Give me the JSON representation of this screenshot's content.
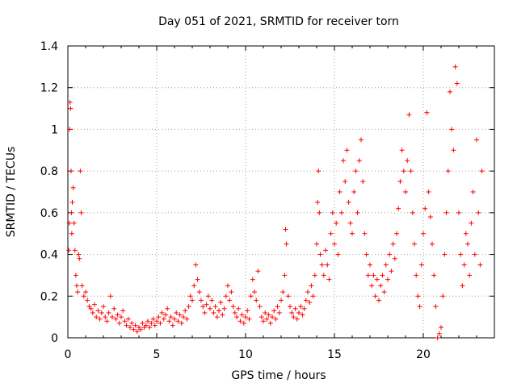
{
  "chart_data": {
    "type": "scatter",
    "title": "Day 051 of 2021, SRMTID for receiver torn",
    "xlabel": "GPS time / hours",
    "ylabel": "SRMTID / TECUs",
    "xlim": [
      0,
      24
    ],
    "ylim": [
      0,
      1.4
    ],
    "xticks": [
      0,
      5,
      10,
      15,
      20
    ],
    "xtick_labels": [
      "0",
      "5",
      "10",
      "15",
      "20"
    ],
    "yticks": [
      0,
      0.2,
      0.4,
      0.6,
      0.8,
      1.0,
      1.2,
      1.4
    ],
    "ytick_labels": [
      "0",
      "0.2",
      "0.4",
      "0.6",
      "0.8",
      "1",
      "1.2",
      "1.4"
    ],
    "grid": true,
    "marker": "+",
    "series": [
      {
        "name": "SRMTID",
        "color": "#ff0000",
        "points": [
          [
            0.05,
            0.42
          ],
          [
            0.08,
            0.55
          ],
          [
            0.1,
            1.0
          ],
          [
            0.12,
            1.13
          ],
          [
            0.15,
            1.1
          ],
          [
            0.18,
            0.8
          ],
          [
            0.2,
            0.6
          ],
          [
            0.22,
            0.5
          ],
          [
            0.25,
            0.65
          ],
          [
            0.3,
            0.72
          ],
          [
            0.35,
            0.55
          ],
          [
            0.4,
            0.42
          ],
          [
            0.45,
            0.3
          ],
          [
            0.5,
            0.25
          ],
          [
            0.55,
            0.22
          ],
          [
            0.6,
            0.4
          ],
          [
            0.65,
            0.38
          ],
          [
            0.7,
            0.8
          ],
          [
            0.75,
            0.6
          ],
          [
            0.8,
            0.25
          ],
          [
            0.9,
            0.2
          ],
          [
            1.0,
            0.22
          ],
          [
            1.1,
            0.18
          ],
          [
            1.2,
            0.15
          ],
          [
            1.3,
            0.14
          ],
          [
            1.4,
            0.12
          ],
          [
            1.5,
            0.16
          ],
          [
            1.6,
            0.1
          ],
          [
            1.7,
            0.13
          ],
          [
            1.8,
            0.09
          ],
          [
            1.9,
            0.12
          ],
          [
            2.0,
            0.15
          ],
          [
            2.1,
            0.1
          ],
          [
            2.2,
            0.08
          ],
          [
            2.3,
            0.12
          ],
          [
            2.4,
            0.2
          ],
          [
            2.5,
            0.1
          ],
          [
            2.6,
            0.14
          ],
          [
            2.7,
            0.09
          ],
          [
            2.8,
            0.11
          ],
          [
            2.9,
            0.07
          ],
          [
            3.0,
            0.1
          ],
          [
            3.1,
            0.13
          ],
          [
            3.2,
            0.08
          ],
          [
            3.3,
            0.06
          ],
          [
            3.4,
            0.09
          ],
          [
            3.5,
            0.05
          ],
          [
            3.6,
            0.07
          ],
          [
            3.7,
            0.04
          ],
          [
            3.8,
            0.06
          ],
          [
            3.9,
            0.03
          ],
          [
            4.0,
            0.05
          ],
          [
            4.1,
            0.04
          ],
          [
            4.2,
            0.07
          ],
          [
            4.3,
            0.05
          ],
          [
            4.4,
            0.06
          ],
          [
            4.5,
            0.08
          ],
          [
            4.6,
            0.05
          ],
          [
            4.7,
            0.07
          ],
          [
            4.8,
            0.09
          ],
          [
            4.9,
            0.06
          ],
          [
            5.0,
            0.08
          ],
          [
            5.1,
            0.1
          ],
          [
            5.2,
            0.07
          ],
          [
            5.3,
            0.12
          ],
          [
            5.4,
            0.09
          ],
          [
            5.5,
            0.11
          ],
          [
            5.6,
            0.14
          ],
          [
            5.7,
            0.08
          ],
          [
            5.8,
            0.1
          ],
          [
            5.9,
            0.06
          ],
          [
            6.0,
            0.09
          ],
          [
            6.1,
            0.12
          ],
          [
            6.2,
            0.08
          ],
          [
            6.3,
            0.11
          ],
          [
            6.4,
            0.07
          ],
          [
            6.5,
            0.1
          ],
          [
            6.6,
            0.13
          ],
          [
            6.7,
            0.09
          ],
          [
            6.8,
            0.15
          ],
          [
            6.9,
            0.2
          ],
          [
            7.0,
            0.18
          ],
          [
            7.1,
            0.25
          ],
          [
            7.2,
            0.35
          ],
          [
            7.3,
            0.28
          ],
          [
            7.4,
            0.22
          ],
          [
            7.5,
            0.18
          ],
          [
            7.6,
            0.15
          ],
          [
            7.7,
            0.12
          ],
          [
            7.8,
            0.16
          ],
          [
            7.9,
            0.2
          ],
          [
            8.0,
            0.14
          ],
          [
            8.1,
            0.18
          ],
          [
            8.2,
            0.12
          ],
          [
            8.3,
            0.15
          ],
          [
            8.4,
            0.1
          ],
          [
            8.5,
            0.13
          ],
          [
            8.6,
            0.17
          ],
          [
            8.7,
            0.11
          ],
          [
            8.8,
            0.14
          ],
          [
            8.9,
            0.2
          ],
          [
            9.0,
            0.25
          ],
          [
            9.1,
            0.18
          ],
          [
            9.2,
            0.22
          ],
          [
            9.3,
            0.15
          ],
          [
            9.4,
            0.12
          ],
          [
            9.5,
            0.1
          ],
          [
            9.6,
            0.14
          ],
          [
            9.7,
            0.08
          ],
          [
            9.8,
            0.11
          ],
          [
            9.9,
            0.07
          ],
          [
            10.0,
            0.1
          ],
          [
            10.1,
            0.13
          ],
          [
            10.2,
            0.09
          ],
          [
            10.3,
            0.2
          ],
          [
            10.4,
            0.28
          ],
          [
            10.5,
            0.22
          ],
          [
            10.6,
            0.18
          ],
          [
            10.7,
            0.32
          ],
          [
            10.8,
            0.15
          ],
          [
            10.9,
            0.1
          ],
          [
            11.0,
            0.08
          ],
          [
            11.1,
            0.12
          ],
          [
            11.2,
            0.09
          ],
          [
            11.3,
            0.11
          ],
          [
            11.4,
            0.07
          ],
          [
            11.5,
            0.1
          ],
          [
            11.6,
            0.13
          ],
          [
            11.7,
            0.09
          ],
          [
            11.8,
            0.15
          ],
          [
            11.9,
            0.12
          ],
          [
            12.0,
            0.18
          ],
          [
            12.1,
            0.22
          ],
          [
            12.2,
            0.3
          ],
          [
            12.25,
            0.52
          ],
          [
            12.3,
            0.45
          ],
          [
            12.4,
            0.2
          ],
          [
            12.5,
            0.15
          ],
          [
            12.6,
            0.12
          ],
          [
            12.7,
            0.1
          ],
          [
            12.8,
            0.14
          ],
          [
            12.9,
            0.09
          ],
          [
            13.0,
            0.12
          ],
          [
            13.1,
            0.15
          ],
          [
            13.2,
            0.11
          ],
          [
            13.3,
            0.14
          ],
          [
            13.4,
            0.18
          ],
          [
            13.5,
            0.22
          ],
          [
            13.6,
            0.17
          ],
          [
            13.7,
            0.25
          ],
          [
            13.8,
            0.2
          ],
          [
            13.9,
            0.3
          ],
          [
            14.0,
            0.45
          ],
          [
            14.05,
            0.65
          ],
          [
            14.1,
            0.8
          ],
          [
            14.15,
            0.6
          ],
          [
            14.2,
            0.4
          ],
          [
            14.3,
            0.35
          ],
          [
            14.4,
            0.3
          ],
          [
            14.5,
            0.42
          ],
          [
            14.6,
            0.35
          ],
          [
            14.7,
            0.28
          ],
          [
            14.8,
            0.5
          ],
          [
            14.9,
            0.6
          ],
          [
            15.0,
            0.45
          ],
          [
            15.1,
            0.55
          ],
          [
            15.2,
            0.4
          ],
          [
            15.3,
            0.7
          ],
          [
            15.4,
            0.6
          ],
          [
            15.5,
            0.85
          ],
          [
            15.6,
            0.75
          ],
          [
            15.7,
            0.9
          ],
          [
            15.8,
            0.65
          ],
          [
            15.9,
            0.55
          ],
          [
            16.0,
            0.5
          ],
          [
            16.1,
            0.7
          ],
          [
            16.2,
            0.8
          ],
          [
            16.3,
            0.6
          ],
          [
            16.4,
            0.85
          ],
          [
            16.5,
            0.95
          ],
          [
            16.6,
            0.75
          ],
          [
            16.7,
            0.5
          ],
          [
            16.8,
            0.4
          ],
          [
            16.9,
            0.3
          ],
          [
            17.0,
            0.35
          ],
          [
            17.1,
            0.25
          ],
          [
            17.2,
            0.3
          ],
          [
            17.3,
            0.2
          ],
          [
            17.4,
            0.28
          ],
          [
            17.5,
            0.18
          ],
          [
            17.6,
            0.25
          ],
          [
            17.7,
            0.3
          ],
          [
            17.8,
            0.22
          ],
          [
            17.9,
            0.35
          ],
          [
            18.0,
            0.28
          ],
          [
            18.1,
            0.4
          ],
          [
            18.2,
            0.32
          ],
          [
            18.3,
            0.45
          ],
          [
            18.4,
            0.38
          ],
          [
            18.5,
            0.5
          ],
          [
            18.6,
            0.62
          ],
          [
            18.7,
            0.75
          ],
          [
            18.8,
            0.9
          ],
          [
            18.9,
            0.8
          ],
          [
            19.0,
            0.7
          ],
          [
            19.1,
            0.85
          ],
          [
            19.2,
            1.07
          ],
          [
            19.3,
            0.8
          ],
          [
            19.4,
            0.6
          ],
          [
            19.5,
            0.45
          ],
          [
            19.6,
            0.3
          ],
          [
            19.7,
            0.2
          ],
          [
            19.8,
            0.15
          ],
          [
            19.9,
            0.35
          ],
          [
            20.0,
            0.5
          ],
          [
            20.1,
            0.62
          ],
          [
            20.2,
            1.08
          ],
          [
            20.3,
            0.7
          ],
          [
            20.4,
            0.58
          ],
          [
            20.5,
            0.45
          ],
          [
            20.6,
            0.3
          ],
          [
            20.7,
            0.15
          ],
          [
            20.8,
            0.0
          ],
          [
            20.9,
            0.02
          ],
          [
            21.0,
            0.05
          ],
          [
            21.1,
            0.2
          ],
          [
            21.2,
            0.4
          ],
          [
            21.3,
            0.6
          ],
          [
            21.4,
            0.8
          ],
          [
            21.5,
            1.18
          ],
          [
            21.6,
            1.0
          ],
          [
            21.7,
            0.9
          ],
          [
            21.8,
            1.3
          ],
          [
            21.9,
            1.22
          ],
          [
            22.0,
            0.6
          ],
          [
            22.1,
            0.4
          ],
          [
            22.2,
            0.25
          ],
          [
            22.3,
            0.35
          ],
          [
            22.4,
            0.5
          ],
          [
            22.5,
            0.45
          ],
          [
            22.6,
            0.3
          ],
          [
            22.7,
            0.55
          ],
          [
            22.8,
            0.7
          ],
          [
            22.9,
            0.4
          ],
          [
            23.0,
            0.95
          ],
          [
            23.1,
            0.6
          ],
          [
            23.2,
            0.35
          ],
          [
            23.3,
            0.8
          ]
        ]
      }
    ]
  }
}
